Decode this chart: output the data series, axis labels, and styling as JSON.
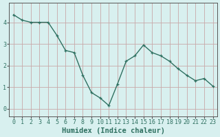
{
  "x": [
    0,
    1,
    2,
    3,
    4,
    5,
    6,
    7,
    8,
    9,
    10,
    11,
    12,
    13,
    14,
    15,
    16,
    17,
    18,
    19,
    20,
    21,
    22,
    23
  ],
  "y": [
    4.35,
    4.1,
    4.0,
    4.0,
    4.0,
    3.4,
    2.7,
    2.6,
    1.55,
    0.75,
    0.5,
    0.15,
    1.15,
    2.2,
    2.45,
    2.95,
    2.6,
    2.45,
    2.2,
    1.85,
    1.55,
    1.3,
    1.4,
    1.05
  ],
  "line_color": "#2e7060",
  "marker": "+",
  "marker_size": 3.5,
  "background_color": "#d8f0ef",
  "grid_color": "#c8a8a8",
  "axis_color": "#555555",
  "xlabel": "Humidex (Indice chaleur)",
  "xlabel_fontsize": 7.5,
  "tick_fontsize": 6,
  "yticks": [
    0,
    1,
    2,
    3,
    4
  ],
  "ylim": [
    -0.35,
    4.9
  ],
  "xlim": [
    -0.5,
    23.5
  ],
  "linewidth": 1.0
}
